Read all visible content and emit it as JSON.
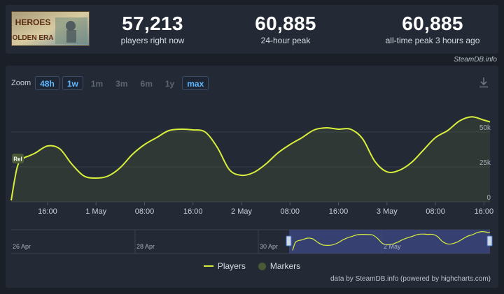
{
  "game": {
    "logo_text_line1": "HEROES",
    "logo_text_line2": "OLDEN ERA"
  },
  "stats": [
    {
      "value": "57,213",
      "label": "players right now"
    },
    {
      "value": "60,885",
      "label": "24-hour peak"
    },
    {
      "value": "60,885",
      "label": "all-time peak 3 hours ago"
    }
  ],
  "credit_top": "SteamDB.info",
  "zoom": {
    "label": "Zoom",
    "buttons": [
      {
        "label": "48h",
        "active": true
      },
      {
        "label": "1w",
        "active": true
      },
      {
        "label": "1m",
        "active": false
      },
      {
        "label": "3m",
        "active": false
      },
      {
        "label": "6m",
        "active": false
      },
      {
        "label": "1y",
        "active": false
      },
      {
        "label": "max",
        "active": true
      }
    ]
  },
  "marker_label": "Rel",
  "navigator_labels": [
    "26 Apr",
    "28 Apr",
    "30 Apr",
    "2 May"
  ],
  "legend": {
    "players": "Players",
    "markers": "Markers"
  },
  "credit_bottom": "data by SteamDB.info (powered by highcharts.com)",
  "colors": {
    "line": "#d7ef3b",
    "accent": "#5fb8ff",
    "navigator": "#3d4a86"
  },
  "chart_data": {
    "type": "area",
    "series": [
      {
        "name": "Players"
      }
    ],
    "x_tick_labels": [
      "16:00",
      "1 May",
      "08:00",
      "16:00",
      "2 May",
      "08:00",
      "16:00",
      "3 May",
      "08:00",
      "16:00"
    ],
    "y_tick_labels": [
      "50k",
      "25k",
      "0"
    ],
    "ylim": [
      0,
      60000
    ],
    "grid": true,
    "x": [
      "30 Apr 10:00",
      "30 Apr 11:00",
      "30 Apr 12:00",
      "30 Apr 13:00",
      "30 Apr 14:00",
      "30 Apr 16:00",
      "30 Apr 18:00",
      "30 Apr 20:00",
      "30 Apr 22:00",
      "1 May 00:00",
      "1 May 02:00",
      "1 May 04:00",
      "1 May 06:00",
      "1 May 08:00",
      "1 May 10:00",
      "1 May 12:00",
      "1 May 14:00",
      "1 May 16:00",
      "1 May 18:00",
      "1 May 20:00",
      "1 May 22:00",
      "2 May 00:00",
      "2 May 02:00",
      "2 May 04:00",
      "2 May 06:00",
      "2 May 08:00",
      "2 May 10:00",
      "2 May 12:00",
      "2 May 14:00",
      "2 May 16:00",
      "2 May 18:00",
      "2 May 20:00",
      "2 May 22:00",
      "3 May 00:00",
      "3 May 02:00",
      "3 May 04:00",
      "3 May 06:00",
      "3 May 08:00",
      "3 May 10:00",
      "3 May 12:00",
      "3 May 14:00",
      "3 May 16:00",
      "3 May 17:00"
    ],
    "values": [
      1000,
      25000,
      31000,
      33000,
      35000,
      40000,
      38000,
      27000,
      18500,
      17000,
      18500,
      24500,
      34000,
      41000,
      46000,
      51000,
      52000,
      51500,
      50000,
      39000,
      23000,
      19000,
      21000,
      27000,
      35000,
      41000,
      46000,
      51500,
      53000,
      52000,
      52000,
      45000,
      29000,
      21500,
      22500,
      28000,
      37000,
      46000,
      51000,
      58000,
      60885,
      58500,
      57213
    ]
  }
}
